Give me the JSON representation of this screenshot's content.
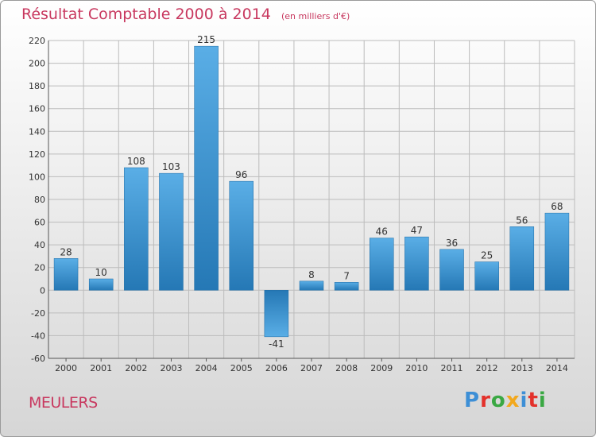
{
  "chart_data": {
    "type": "bar",
    "title": "Résultat Comptable 2000 à 2014",
    "subtitle": "(en milliers d'€)",
    "categories": [
      "2000",
      "2001",
      "2002",
      "2003",
      "2004",
      "2005",
      "2006",
      "2007",
      "2008",
      "2009",
      "2010",
      "2011",
      "2012",
      "2013",
      "2014"
    ],
    "values": [
      28,
      10,
      108,
      103,
      215,
      96,
      -41,
      8,
      7,
      46,
      47,
      36,
      25,
      56,
      68
    ],
    "ylim": [
      -60,
      220
    ],
    "yticks": [
      -60,
      -40,
      -20,
      0,
      20,
      40,
      60,
      80,
      100,
      120,
      140,
      160,
      180,
      200,
      220
    ],
    "grid": true,
    "xlabel": "",
    "ylabel": "",
    "bar_color_top": "#5aaee6",
    "bar_color_bottom": "#2578b5"
  },
  "footer": {
    "commune": "MEULERS",
    "logo_text": "Proxiti"
  },
  "colors": {
    "title": "#c8385f",
    "grid": "#bcbcbc",
    "axis": "#555555"
  }
}
